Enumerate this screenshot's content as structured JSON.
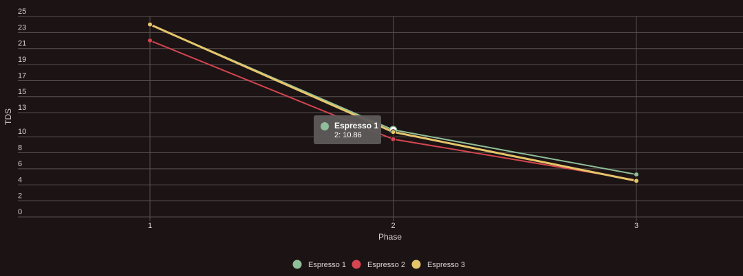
{
  "chart_data": {
    "type": "line",
    "xlabel": "Phase",
    "ylabel": "TDS",
    "categories": [
      "1",
      "2",
      "3"
    ],
    "y_ticks": [
      0,
      2,
      4,
      6,
      8,
      10,
      13,
      15,
      17,
      19,
      21,
      23,
      25
    ],
    "ylim": [
      0,
      25
    ],
    "grid": true,
    "legend_position": "bottom-center",
    "series": [
      {
        "name": "Espresso 1",
        "color": "#8fbf9a",
        "values": [
          24,
          10.86,
          5.3
        ]
      },
      {
        "name": "Espresso 2",
        "color": "#d64550",
        "values": [
          22,
          9.7,
          4.6
        ]
      },
      {
        "name": "Espresso 3",
        "color": "#e6c56a",
        "values": [
          24,
          10.6,
          4.5
        ]
      }
    ],
    "tooltip": {
      "series": "Espresso 1",
      "text": "2: 10.86",
      "color": "#8fbf9a"
    }
  }
}
